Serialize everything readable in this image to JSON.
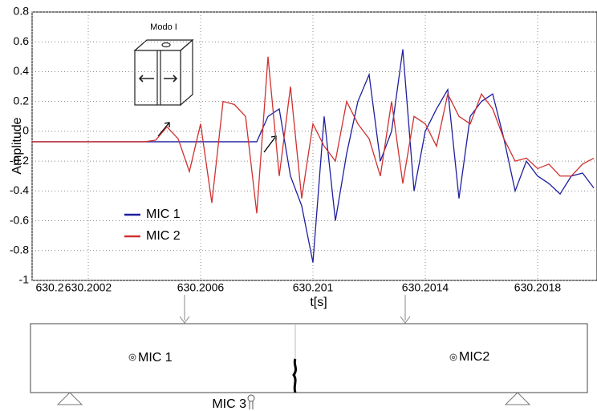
{
  "chart_data": {
    "type": "line",
    "annotation": "Modo I",
    "xlabel": "t[s]",
    "ylabel": "Amplitude",
    "x": [
      630.2,
      630.20004,
      630.20008,
      630.20012,
      630.20016,
      630.2002,
      630.20024,
      630.20028,
      630.20032,
      630.20036,
      630.2004,
      630.20044,
      630.20048,
      630.20052,
      630.20056,
      630.2006,
      630.20064,
      630.20068,
      630.20072,
      630.20076,
      630.2008,
      630.20084,
      630.20088,
      630.20092,
      630.20096,
      630.201,
      630.20104,
      630.20108,
      630.20112,
      630.20116,
      630.2012,
      630.20124,
      630.20128,
      630.20132,
      630.20136,
      630.2014,
      630.20144,
      630.20148,
      630.20152,
      630.20156,
      630.2016,
      630.20164,
      630.20168,
      630.20172,
      630.20176,
      630.2018,
      630.20184,
      630.20188,
      630.20192,
      630.20196,
      630.202
    ],
    "series": [
      {
        "name": "MIC 1",
        "color": "#1f1fa0",
        "values": [
          -0.07,
          -0.07,
          -0.07,
          -0.07,
          -0.07,
          -0.07,
          -0.07,
          -0.07,
          -0.07,
          -0.07,
          -0.07,
          -0.07,
          -0.07,
          -0.07,
          -0.07,
          -0.07,
          -0.07,
          -0.07,
          -0.07,
          -0.07,
          -0.07,
          0.1,
          0.15,
          -0.3,
          -0.5,
          -0.88,
          0.1,
          -0.6,
          -0.15,
          0.2,
          0.38,
          -0.2,
          0,
          0.55,
          -0.4,
          0,
          0.15,
          0.28,
          -0.45,
          0.1,
          0.2,
          0.25,
          -0.05,
          -0.4,
          -0.2,
          -0.3,
          -0.35,
          -0.42,
          -0.3,
          -0.28,
          -0.38
        ]
      },
      {
        "name": "MIC 2",
        "color": "#d03030",
        "values": [
          -0.07,
          -0.07,
          -0.07,
          -0.07,
          -0.07,
          -0.07,
          -0.07,
          -0.07,
          -0.07,
          -0.07,
          -0.07,
          -0.06,
          0.03,
          -0.05,
          -0.27,
          0.05,
          -0.48,
          0.2,
          0.18,
          0.1,
          -0.55,
          0.5,
          -0.3,
          0.3,
          -0.45,
          0.05,
          -0.1,
          -0.2,
          0.2,
          0.05,
          -0.05,
          -0.3,
          0.2,
          -0.35,
          0.1,
          0.05,
          -0.1,
          0.25,
          0.1,
          0.05,
          0.25,
          0.15,
          -0.05,
          -0.2,
          -0.18,
          -0.25,
          -0.22,
          -0.3,
          -0.3,
          -0.22,
          -0.18
        ]
      }
    ],
    "xlim": [
      630.2,
      630.202
    ],
    "ylim": [
      -1,
      0.8
    ],
    "xticks": [
      630.2,
      630.2002,
      630.2006,
      630.201,
      630.2014,
      630.2018
    ],
    "yticks": [
      -1,
      -0.8,
      -0.6,
      -0.4,
      -0.2,
      0,
      0.2,
      0.4,
      0.6,
      0.8
    ],
    "grid": true,
    "legend": "left"
  },
  "diagram": {
    "labels": [
      "MIC 1",
      "MIC2",
      "MIC 3"
    ]
  }
}
